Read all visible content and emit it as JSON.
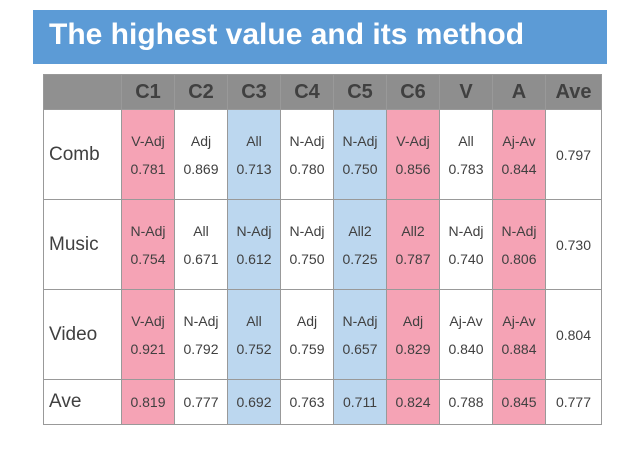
{
  "title": "The highest value and its method",
  "colors": {
    "title_bg": "#5c9bd6",
    "header_bg": "#8e8e8e",
    "pink": "#f5a3b5",
    "blue": "#bcd7ef"
  },
  "table": {
    "columns": [
      "C1",
      "C2",
      "C3",
      "C4",
      "C5",
      "C6",
      "V",
      "A",
      "Ave"
    ],
    "rows": [
      {
        "label": "Comb",
        "cells": [
          {
            "method": "V-Adj",
            "value": "0.781",
            "color": "pink"
          },
          {
            "method": "Adj",
            "value": "0.869",
            "color": "white"
          },
          {
            "method": "All",
            "value": "0.713",
            "color": "blue"
          },
          {
            "method": "N-Adj",
            "value": "0.780",
            "color": "white"
          },
          {
            "method": "N-Adj",
            "value": "0.750",
            "color": "blue"
          },
          {
            "method": "V-Adj",
            "value": "0.856",
            "color": "pink"
          },
          {
            "method": "All",
            "value": "0.783",
            "color": "white"
          },
          {
            "method": "Aj-Av",
            "value": "0.844",
            "color": "pink"
          }
        ],
        "ave": "0.797"
      },
      {
        "label": "Music",
        "cells": [
          {
            "method": "N-Adj",
            "value": "0.754",
            "color": "pink"
          },
          {
            "method": "All",
            "value": "0.671",
            "color": "white"
          },
          {
            "method": "N-Adj",
            "value": "0.612",
            "color": "blue"
          },
          {
            "method": "N-Adj",
            "value": "0.750",
            "color": "white"
          },
          {
            "method": "All2",
            "value": "0.725",
            "color": "blue"
          },
          {
            "method": "All2",
            "value": "0.787",
            "color": "pink"
          },
          {
            "method": "N-Adj",
            "value": "0.740",
            "color": "white"
          },
          {
            "method": "N-Adj",
            "value": "0.806",
            "color": "pink"
          }
        ],
        "ave": "0.730"
      },
      {
        "label": "Video",
        "cells": [
          {
            "method": "V-Adj",
            "value": "0.921",
            "color": "pink"
          },
          {
            "method": "N-Adj",
            "value": "0.792",
            "color": "white"
          },
          {
            "method": "All",
            "value": "0.752",
            "color": "blue"
          },
          {
            "method": "Adj",
            "value": "0.759",
            "color": "white"
          },
          {
            "method": "N-Adj",
            "value": "0.657",
            "color": "blue"
          },
          {
            "method": "Adj",
            "value": "0.829",
            "color": "pink"
          },
          {
            "method": "Aj-Av",
            "value": "0.840",
            "color": "white"
          },
          {
            "method": "Aj-Av",
            "value": "0.884",
            "color": "pink"
          }
        ],
        "ave": "0.804"
      }
    ],
    "ave_row": {
      "label": "Ave",
      "values": [
        "0.819",
        "0.777",
        "0.692",
        "0.763",
        "0.711",
        "0.824",
        "0.788",
        "0.845",
        "0.777"
      ],
      "colors": [
        "pink",
        "white",
        "blue",
        "white",
        "blue",
        "pink",
        "white",
        "pink",
        "white"
      ]
    }
  }
}
